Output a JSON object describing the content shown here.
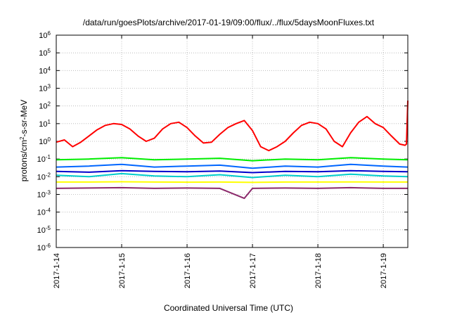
{
  "chart_data": {
    "type": "line",
    "title": "/data/run/goesPlots/archive/2017-01-19/09:00/flux/../flux/5daysMoonFluxes.txt",
    "xlabel": "Coordinated Universal Time (UTC)",
    "ylabel": "protons/cm2-s-sr-MeV",
    "ylabel_parts": {
      "pre": "protons/cm",
      "sup": "2",
      "post": "-s-sr-MeV"
    },
    "yscale": "log",
    "ylim": [
      1e-06,
      1000000.0
    ],
    "xlim": [
      "2017-01-14 00:00",
      "2017-01-19 09:00"
    ],
    "grid": true,
    "x_ticks": [
      "2017-1-14",
      "2017-1-15",
      "2017-1-16",
      "2017-1-17",
      "2017-1-18",
      "2017-1-19"
    ],
    "y_ticks": [
      {
        "base": "10",
        "exp": "6"
      },
      {
        "base": "10",
        "exp": "5"
      },
      {
        "base": "10",
        "exp": "4"
      },
      {
        "base": "10",
        "exp": "3"
      },
      {
        "base": "10",
        "exp": "2"
      },
      {
        "base": "10",
        "exp": "1"
      },
      {
        "base": "10",
        "exp": "0"
      },
      {
        "base": "10",
        "exp": "-1"
      },
      {
        "base": "10",
        "exp": "-2"
      },
      {
        "base": "10",
        "exp": "-3"
      },
      {
        "base": "10",
        "exp": "-4"
      },
      {
        "base": "10",
        "exp": "-5"
      },
      {
        "base": "10",
        "exp": "-6"
      }
    ],
    "series": [
      {
        "color": "#ff0000",
        "x": [
          "2017-01-14 00:00",
          "2017-01-14 03:00",
          "2017-01-14 06:00",
          "2017-01-14 09:00",
          "2017-01-14 12:00",
          "2017-01-14 15:00",
          "2017-01-14 18:00",
          "2017-01-14 21:00",
          "2017-01-15 00:00",
          "2017-01-15 03:00",
          "2017-01-15 06:00",
          "2017-01-15 09:00",
          "2017-01-15 12:00",
          "2017-01-15 15:00",
          "2017-01-15 18:00",
          "2017-01-15 21:00",
          "2017-01-16 00:00",
          "2017-01-16 03:00",
          "2017-01-16 06:00",
          "2017-01-16 09:00",
          "2017-01-16 12:00",
          "2017-01-16 15:00",
          "2017-01-16 18:00",
          "2017-01-16 21:00",
          "2017-01-17 00:00",
          "2017-01-17 03:00",
          "2017-01-17 06:00",
          "2017-01-17 09:00",
          "2017-01-17 12:00",
          "2017-01-17 15:00",
          "2017-01-17 18:00",
          "2017-01-17 21:00",
          "2017-01-18 00:00",
          "2017-01-18 03:00",
          "2017-01-18 06:00",
          "2017-01-18 09:00",
          "2017-01-18 12:00",
          "2017-01-18 15:00",
          "2017-01-18 18:00",
          "2017-01-18 21:00",
          "2017-01-19 00:00",
          "2017-01-19 03:00",
          "2017-01-19 06:00",
          "2017-01-19 08:00",
          "2017-01-19 08:30",
          "2017-01-19 09:00"
        ],
        "values": [
          0.9,
          1.2,
          0.5,
          0.9,
          2.0,
          4.5,
          8.0,
          10.0,
          9.0,
          5.0,
          2.0,
          1.0,
          1.5,
          5.0,
          10.0,
          12.0,
          6.0,
          2.0,
          0.8,
          0.9,
          2.5,
          6.0,
          10.0,
          15.0,
          4.0,
          0.5,
          0.3,
          0.5,
          1.0,
          3.0,
          8.0,
          12.0,
          10.0,
          5.0,
          1.0,
          0.5,
          3.0,
          12.0,
          25.0,
          10.0,
          6.0,
          2.0,
          0.7,
          0.6,
          0.7,
          200.0
        ]
      },
      {
        "color": "#00ee00",
        "x": [
          "2017-01-14 00:00",
          "2017-01-14 12:00",
          "2017-01-15 00:00",
          "2017-01-15 12:00",
          "2017-01-16 00:00",
          "2017-01-16 12:00",
          "2017-01-17 00:00",
          "2017-01-17 12:00",
          "2017-01-18 00:00",
          "2017-01-18 12:00",
          "2017-01-19 00:00",
          "2017-01-19 09:00"
        ],
        "values": [
          0.09,
          0.1,
          0.12,
          0.09,
          0.1,
          0.11,
          0.08,
          0.1,
          0.09,
          0.12,
          0.1,
          0.09
        ]
      },
      {
        "color": "#00cccc",
        "x": [
          "2017-01-14 00:00",
          "2017-01-14 12:00",
          "2017-01-15 00:00",
          "2017-01-15 12:00",
          "2017-01-16 00:00",
          "2017-01-16 12:00",
          "2017-01-17 00:00",
          "2017-01-17 12:00",
          "2017-01-18 00:00",
          "2017-01-18 12:00",
          "2017-01-19 00:00",
          "2017-01-19 09:00"
        ],
        "values": [
          0.012,
          0.01,
          0.015,
          0.011,
          0.01,
          0.013,
          0.009,
          0.012,
          0.01,
          0.014,
          0.011,
          0.01
        ]
      },
      {
        "color": "#0066ff",
        "x": [
          "2017-01-14 00:00",
          "2017-01-14 12:00",
          "2017-01-15 00:00",
          "2017-01-15 12:00",
          "2017-01-16 00:00",
          "2017-01-16 12:00",
          "2017-01-17 00:00",
          "2017-01-17 12:00",
          "2017-01-18 00:00",
          "2017-01-18 12:00",
          "2017-01-19 00:00",
          "2017-01-19 09:00"
        ],
        "values": [
          0.035,
          0.04,
          0.05,
          0.035,
          0.04,
          0.045,
          0.03,
          0.04,
          0.035,
          0.05,
          0.04,
          0.035
        ]
      },
      {
        "color": "#0000cc",
        "x": [
          "2017-01-14 00:00",
          "2017-01-14 12:00",
          "2017-01-15 00:00",
          "2017-01-15 12:00",
          "2017-01-16 00:00",
          "2017-01-16 12:00",
          "2017-01-17 00:00",
          "2017-01-17 12:00",
          "2017-01-18 00:00",
          "2017-01-18 12:00",
          "2017-01-19 00:00",
          "2017-01-19 09:00"
        ],
        "values": [
          0.02,
          0.018,
          0.022,
          0.02,
          0.019,
          0.021,
          0.017,
          0.02,
          0.019,
          0.022,
          0.02,
          0.019
        ]
      },
      {
        "color": "#ffff00",
        "x": [
          "2017-01-14 00:00",
          "2017-01-14 12:00",
          "2017-01-15 00:00",
          "2017-01-15 12:00",
          "2017-01-16 00:00",
          "2017-01-16 12:00",
          "2017-01-17 00:00",
          "2017-01-17 12:00",
          "2017-01-18 00:00",
          "2017-01-18 12:00",
          "2017-01-19 00:00",
          "2017-01-19 09:00"
        ],
        "values": [
          0.005,
          0.005,
          0.0052,
          0.005,
          0.0049,
          0.005,
          0.0048,
          0.005,
          0.005,
          0.0051,
          0.005,
          0.005
        ]
      },
      {
        "color": "#8b2a6b",
        "x": [
          "2017-01-14 00:00",
          "2017-01-14 12:00",
          "2017-01-15 00:00",
          "2017-01-15 12:00",
          "2017-01-16 00:00",
          "2017-01-16 12:00",
          "2017-01-16 21:00",
          "2017-01-17 00:00",
          "2017-01-17 12:00",
          "2017-01-18 00:00",
          "2017-01-18 12:00",
          "2017-01-19 00:00",
          "2017-01-19 09:00"
        ],
        "values": [
          0.0022,
          0.0023,
          0.0024,
          0.0022,
          0.0023,
          0.0022,
          0.0006,
          0.0022,
          0.0023,
          0.0022,
          0.0024,
          0.0022,
          0.0022
        ]
      }
    ]
  }
}
